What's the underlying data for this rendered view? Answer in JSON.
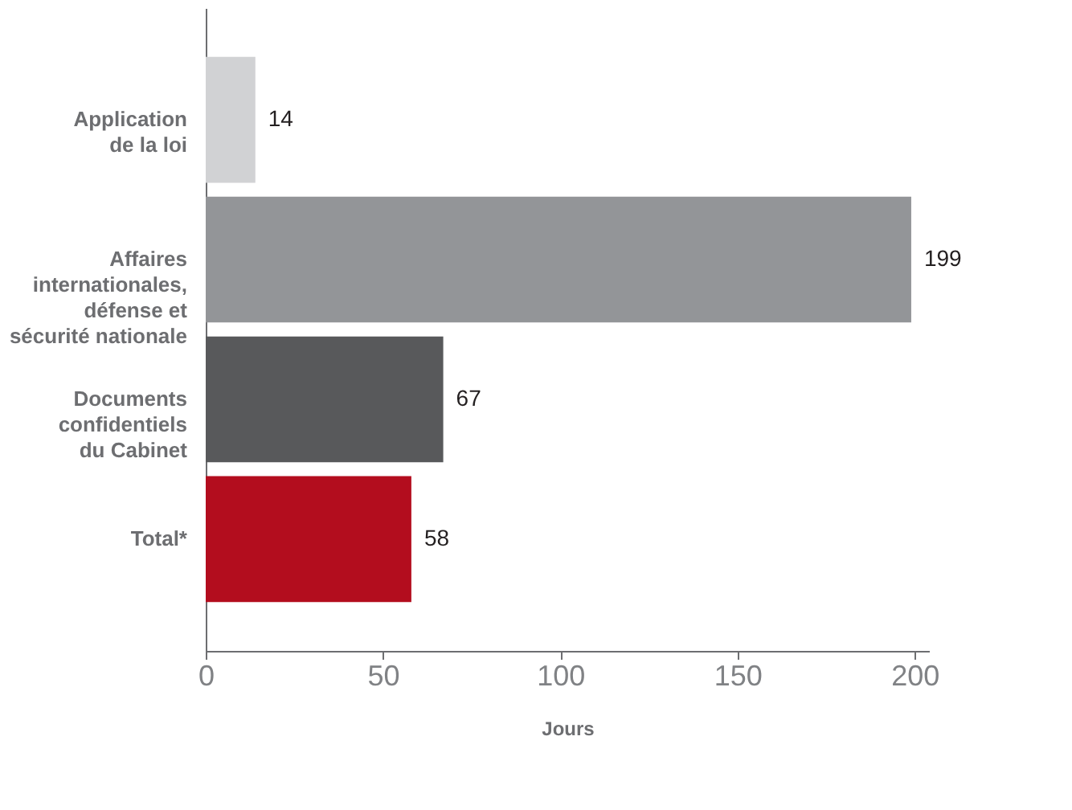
{
  "chart_data": {
    "type": "bar",
    "orientation": "horizontal",
    "categories": [
      "Application\nde la loi",
      "Affaires\ninternationales,\ndéfense et\nsécurité nationale",
      "Documents\nconfidentiels\ndu Cabinet",
      "Total*"
    ],
    "values": [
      14,
      199,
      67,
      58
    ],
    "colors": [
      "#d1d2d4",
      "#939598",
      "#58595b",
      "#b30d1e"
    ],
    "xlim": [
      0,
      204
    ],
    "xticks": [
      0,
      50,
      100,
      150,
      200
    ],
    "xlabel": "Jours",
    "data_labels": true,
    "grid": false
  }
}
